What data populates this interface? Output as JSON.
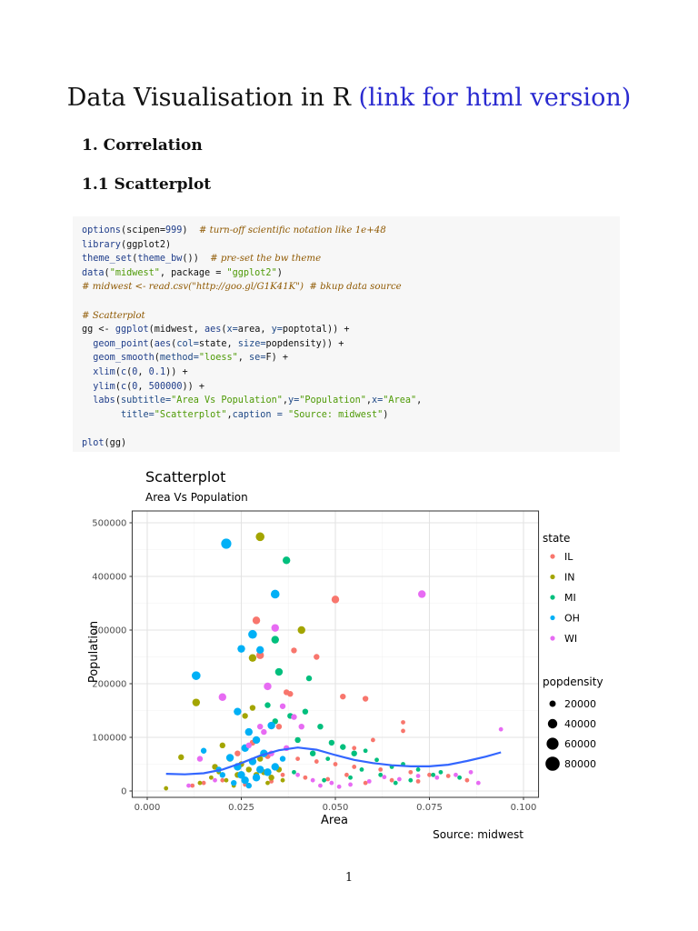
{
  "document": {
    "title_main": "Data Visualisation in R",
    "title_link": "(link for html version)",
    "section": "1.  Correlation",
    "subsection": "1.1 Scatterplot",
    "page_number": "1"
  },
  "code_lines": [
    [
      [
        "fn",
        "options"
      ],
      [
        "t",
        "(scipen="
      ],
      [
        "num",
        "999"
      ],
      [
        "t",
        ")  "
      ],
      [
        "cm",
        "# turn-off scientific notation like 1e+48"
      ]
    ],
    [
      [
        "fn",
        "library"
      ],
      [
        "t",
        "(ggplot2)"
      ]
    ],
    [
      [
        "fn",
        "theme_set"
      ],
      [
        "t",
        "("
      ],
      [
        "fn",
        "theme_bw"
      ],
      [
        "t",
        "())  "
      ],
      [
        "cm",
        "# pre-set the bw theme"
      ]
    ],
    [
      [
        "fn",
        "data"
      ],
      [
        "t",
        "("
      ],
      [
        "str",
        "\"midwest\""
      ],
      [
        "t",
        ", package = "
      ],
      [
        "str",
        "\"ggplot2\""
      ],
      [
        "t",
        ")"
      ]
    ],
    [
      [
        "cm",
        "# midwest <- read.csv(\"http://goo.gl/G1K41K\")  # bkup data source"
      ]
    ],
    [
      [
        "t",
        ""
      ]
    ],
    [
      [
        "cm",
        "# Scatterplot"
      ]
    ],
    [
      [
        "t",
        "gg <- "
      ],
      [
        "fn",
        "ggplot"
      ],
      [
        "t",
        "(midwest, "
      ],
      [
        "fn",
        "aes"
      ],
      [
        "t",
        "("
      ],
      [
        "kw",
        "x="
      ],
      [
        "t",
        "area, "
      ],
      [
        "kw",
        "y="
      ],
      [
        "t",
        "poptotal)) +"
      ]
    ],
    [
      [
        "t",
        "  "
      ],
      [
        "fn",
        "geom_point"
      ],
      [
        "t",
        "("
      ],
      [
        "fn",
        "aes"
      ],
      [
        "t",
        "("
      ],
      [
        "kw",
        "col="
      ],
      [
        "t",
        "state, "
      ],
      [
        "kw",
        "size="
      ],
      [
        "t",
        "popdensity)) +"
      ]
    ],
    [
      [
        "t",
        "  "
      ],
      [
        "fn",
        "geom_smooth"
      ],
      [
        "t",
        "("
      ],
      [
        "kw",
        "method="
      ],
      [
        "str",
        "\"loess\""
      ],
      [
        "t",
        ", "
      ],
      [
        "kw",
        "se="
      ],
      [
        "t",
        "F) +"
      ]
    ],
    [
      [
        "t",
        "  "
      ],
      [
        "fn",
        "xlim"
      ],
      [
        "t",
        "("
      ],
      [
        "fn",
        "c"
      ],
      [
        "t",
        "("
      ],
      [
        "num",
        "0"
      ],
      [
        "t",
        ", "
      ],
      [
        "num",
        "0.1"
      ],
      [
        "t",
        ")) +"
      ]
    ],
    [
      [
        "t",
        "  "
      ],
      [
        "fn",
        "ylim"
      ],
      [
        "t",
        "("
      ],
      [
        "fn",
        "c"
      ],
      [
        "t",
        "("
      ],
      [
        "num",
        "0"
      ],
      [
        "t",
        ", "
      ],
      [
        "num",
        "500000"
      ],
      [
        "t",
        ")) +"
      ]
    ],
    [
      [
        "t",
        "  "
      ],
      [
        "fn",
        "labs"
      ],
      [
        "t",
        "("
      ],
      [
        "kw",
        "subtitle="
      ],
      [
        "str",
        "\"Area Vs Population\""
      ],
      [
        "t",
        ","
      ],
      [
        "kw",
        "y="
      ],
      [
        "str",
        "\"Population\""
      ],
      [
        "t",
        ","
      ],
      [
        "kw",
        "x="
      ],
      [
        "str",
        "\"Area\""
      ],
      [
        "t",
        ","
      ]
    ],
    [
      [
        "t",
        "       "
      ],
      [
        "kw",
        "title="
      ],
      [
        "str",
        "\"Scatterplot\""
      ],
      [
        "t",
        ","
      ],
      [
        "kw",
        "caption = "
      ],
      [
        "str",
        "\"Source: midwest\""
      ],
      [
        "t",
        ")"
      ]
    ],
    [
      [
        "t",
        ""
      ]
    ],
    [
      [
        "fn",
        "plot"
      ],
      [
        "t",
        "(gg)"
      ]
    ]
  ],
  "colors": {
    "IL": "#f8766d",
    "IN": "#a3a500",
    "MI": "#00bf7d",
    "OH": "#00b0f6",
    "WI": "#e76bf3",
    "smooth": "#3366ff"
  },
  "chart_data": {
    "type": "scatter",
    "title": "Scatterplot",
    "subtitle": "Area Vs Population",
    "xlabel": "Area",
    "ylabel": "Population",
    "caption": "Source: midwest",
    "xlim": [
      0,
      0.1
    ],
    "ylim": [
      0,
      500000
    ],
    "x_ticks": [
      "0.000",
      "0.025",
      "0.050",
      "0.075",
      "0.100"
    ],
    "y_ticks": [
      "0",
      "100000",
      "200000",
      "300000",
      "400000",
      "500000"
    ],
    "legend_color_title": "state",
    "legend_size_title": "popdensity",
    "legend_size_entries": [
      "20000",
      "40000",
      "60000",
      "80000"
    ],
    "legend_placement": "right",
    "series": [
      {
        "name": "IL",
        "points": [
          [
            0.05,
            357000,
            4
          ],
          [
            0.029,
            318000,
            4
          ],
          [
            0.039,
            262000,
            3
          ],
          [
            0.045,
            250000,
            3
          ],
          [
            0.03,
            253000,
            4
          ],
          [
            0.037,
            184000,
            3
          ],
          [
            0.038,
            181000,
            3
          ],
          [
            0.052,
            176000,
            3
          ],
          [
            0.058,
            172000,
            3
          ],
          [
            0.068,
            128000,
            2
          ],
          [
            0.068,
            112000,
            2
          ],
          [
            0.06,
            95000,
            2
          ],
          [
            0.055,
            80000,
            2
          ],
          [
            0.035,
            120000,
            3
          ],
          [
            0.028,
            90000,
            3
          ],
          [
            0.024,
            70000,
            3
          ],
          [
            0.032,
            65000,
            3
          ],
          [
            0.04,
            60000,
            2
          ],
          [
            0.045,
            55000,
            2
          ],
          [
            0.05,
            50000,
            2
          ],
          [
            0.055,
            45000,
            2
          ],
          [
            0.062,
            40000,
            2
          ],
          [
            0.07,
            35000,
            2
          ],
          [
            0.075,
            30000,
            2
          ],
          [
            0.08,
            28000,
            2
          ],
          [
            0.065,
            20000,
            2
          ],
          [
            0.058,
            15000,
            2
          ],
          [
            0.042,
            25000,
            2
          ],
          [
            0.036,
            30000,
            2
          ],
          [
            0.02,
            20000,
            2
          ],
          [
            0.015,
            15000,
            2
          ],
          [
            0.012,
            10000,
            2
          ],
          [
            0.026,
            12000,
            2
          ],
          [
            0.033,
            18000,
            2
          ],
          [
            0.048,
            22000,
            2
          ],
          [
            0.053,
            30000,
            2
          ],
          [
            0.072,
            18000,
            2
          ],
          [
            0.085,
            20000,
            2
          ]
        ]
      },
      {
        "name": "IN",
        "points": [
          [
            0.03,
            474000,
            5
          ],
          [
            0.041,
            300000,
            4
          ],
          [
            0.028,
            248000,
            4
          ],
          [
            0.013,
            165000,
            4
          ],
          [
            0.009,
            63000,
            3
          ],
          [
            0.005,
            5000,
            2
          ],
          [
            0.02,
            85000,
            3
          ],
          [
            0.026,
            140000,
            3
          ],
          [
            0.028,
            155000,
            3
          ],
          [
            0.018,
            45000,
            3
          ],
          [
            0.022,
            60000,
            3
          ],
          [
            0.025,
            50000,
            3
          ],
          [
            0.027,
            40000,
            3
          ],
          [
            0.029,
            30000,
            3
          ],
          [
            0.031,
            35000,
            3
          ],
          [
            0.033,
            25000,
            3
          ],
          [
            0.035,
            40000,
            3
          ],
          [
            0.024,
            30000,
            3
          ],
          [
            0.021,
            20000,
            2
          ],
          [
            0.017,
            25000,
            2
          ],
          [
            0.014,
            15000,
            2
          ],
          [
            0.023,
            10000,
            2
          ],
          [
            0.032,
            15000,
            2
          ],
          [
            0.036,
            20000,
            2
          ],
          [
            0.03,
            60000,
            3
          ],
          [
            0.019,
            35000,
            2
          ]
        ]
      },
      {
        "name": "MI",
        "points": [
          [
            0.037,
            430000,
            4
          ],
          [
            0.034,
            282000,
            4
          ],
          [
            0.043,
            210000,
            3
          ],
          [
            0.035,
            222000,
            4
          ],
          [
            0.032,
            160000,
            3
          ],
          [
            0.038,
            140000,
            3
          ],
          [
            0.042,
            148000,
            3
          ],
          [
            0.034,
            130000,
            3
          ],
          [
            0.046,
            120000,
            3
          ],
          [
            0.049,
            90000,
            3
          ],
          [
            0.052,
            82000,
            3
          ],
          [
            0.055,
            70000,
            3
          ],
          [
            0.058,
            75000,
            2
          ],
          [
            0.061,
            58000,
            2
          ],
          [
            0.065,
            45000,
            2
          ],
          [
            0.068,
            50000,
            2
          ],
          [
            0.072,
            40000,
            2
          ],
          [
            0.076,
            30000,
            2
          ],
          [
            0.078,
            35000,
            2
          ],
          [
            0.04,
            95000,
            3
          ],
          [
            0.044,
            70000,
            3
          ],
          [
            0.048,
            60000,
            2
          ],
          [
            0.057,
            40000,
            2
          ],
          [
            0.062,
            30000,
            2
          ],
          [
            0.054,
            25000,
            2
          ],
          [
            0.047,
            20000,
            2
          ],
          [
            0.039,
            35000,
            2
          ],
          [
            0.066,
            15000,
            2
          ],
          [
            0.07,
            20000,
            2
          ],
          [
            0.083,
            25000,
            2
          ]
        ]
      },
      {
        "name": "OH",
        "points": [
          [
            0.021,
            461000,
            6
          ],
          [
            0.034,
            367000,
            5
          ],
          [
            0.028,
            292000,
            5
          ],
          [
            0.025,
            265000,
            4
          ],
          [
            0.013,
            215000,
            5
          ],
          [
            0.03,
            263000,
            4
          ],
          [
            0.024,
            148000,
            4
          ],
          [
            0.027,
            110000,
            4
          ],
          [
            0.033,
            122000,
            4
          ],
          [
            0.029,
            95000,
            4
          ],
          [
            0.026,
            80000,
            4
          ],
          [
            0.031,
            70000,
            4
          ],
          [
            0.022,
            62000,
            4
          ],
          [
            0.028,
            55000,
            4
          ],
          [
            0.024,
            45000,
            4
          ],
          [
            0.03,
            40000,
            4
          ],
          [
            0.032,
            35000,
            4
          ],
          [
            0.025,
            30000,
            4
          ],
          [
            0.026,
            20000,
            4
          ],
          [
            0.029,
            25000,
            4
          ],
          [
            0.034,
            45000,
            4
          ],
          [
            0.036,
            60000,
            3
          ],
          [
            0.019,
            40000,
            3
          ],
          [
            0.015,
            75000,
            3
          ],
          [
            0.02,
            30000,
            3
          ],
          [
            0.023,
            15000,
            3
          ],
          [
            0.027,
            10000,
            3
          ]
        ]
      },
      {
        "name": "WI",
        "points": [
          [
            0.073,
            367000,
            4
          ],
          [
            0.034,
            304000,
            4
          ],
          [
            0.032,
            195000,
            4
          ],
          [
            0.02,
            175000,
            4
          ],
          [
            0.036,
            158000,
            3
          ],
          [
            0.039,
            138000,
            3
          ],
          [
            0.041,
            120000,
            3
          ],
          [
            0.031,
            110000,
            3
          ],
          [
            0.094,
            115000,
            2
          ],
          [
            0.088,
            15000,
            2
          ],
          [
            0.086,
            35000,
            2
          ],
          [
            0.082,
            30000,
            2
          ],
          [
            0.077,
            25000,
            2
          ],
          [
            0.072,
            28000,
            2
          ],
          [
            0.067,
            22000,
            2
          ],
          [
            0.063,
            26000,
            2
          ],
          [
            0.059,
            18000,
            2
          ],
          [
            0.054,
            12000,
            2
          ],
          [
            0.049,
            15000,
            2
          ],
          [
            0.044,
            20000,
            2
          ],
          [
            0.037,
            80000,
            3
          ],
          [
            0.033,
            70000,
            3
          ],
          [
            0.03,
            120000,
            3
          ],
          [
            0.027,
            85000,
            3
          ],
          [
            0.014,
            60000,
            3
          ],
          [
            0.018,
            20000,
            2
          ],
          [
            0.011,
            10000,
            2
          ],
          [
            0.04,
            30000,
            2
          ],
          [
            0.046,
            10000,
            2
          ],
          [
            0.051,
            8000,
            2
          ]
        ]
      }
    ],
    "smooth": {
      "method": "loess",
      "x": [
        0.005,
        0.01,
        0.015,
        0.02,
        0.025,
        0.03,
        0.035,
        0.04,
        0.045,
        0.05,
        0.055,
        0.06,
        0.065,
        0.07,
        0.075,
        0.08,
        0.085,
        0.09,
        0.094
      ],
      "y": [
        32000,
        31000,
        33000,
        40000,
        52000,
        66000,
        76000,
        81000,
        77000,
        67000,
        58000,
        52000,
        48000,
        46000,
        46000,
        49000,
        56000,
        64000,
        72000
      ]
    }
  }
}
